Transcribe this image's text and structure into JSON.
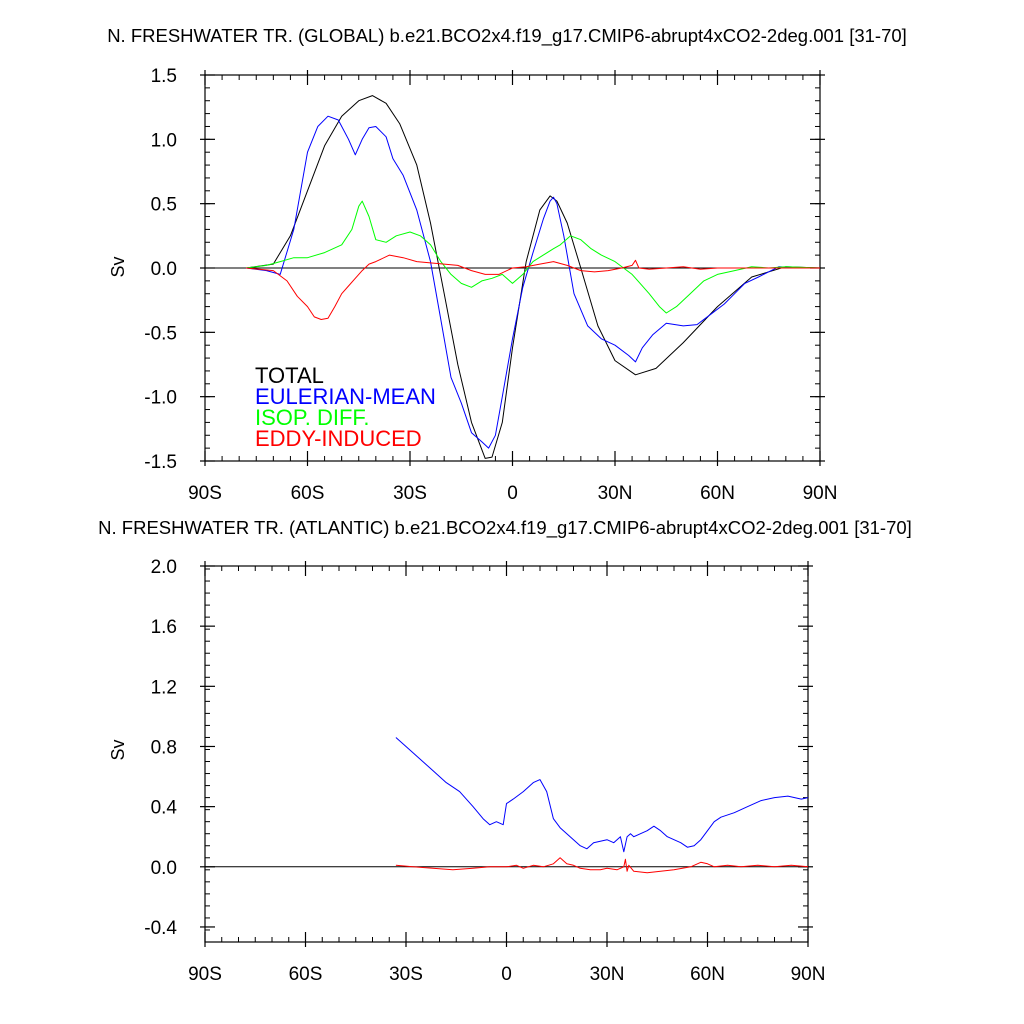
{
  "chart_data": [
    {
      "type": "line",
      "title": "N. FRESHWATER TR. (GLOBAL) b.e21.BCO2x4.f19_g17.CMIP6-abrupt4xCO2-2deg.001 [31-70]",
      "xlabel": "",
      "ylabel": "Sv",
      "xlim": [
        -90,
        90
      ],
      "ylim": [
        -1.5,
        1.5
      ],
      "xticks": [
        -90,
        -60,
        -30,
        0,
        30,
        60,
        90
      ],
      "xtick_labels": [
        "90S",
        "60S",
        "30S",
        "0",
        "30N",
        "60N",
        "90N"
      ],
      "yticks": [
        -1.5,
        -1.0,
        -0.5,
        0.0,
        0.5,
        1.0,
        1.5
      ],
      "ytick_labels": [
        "-1.5",
        "-1.0",
        "-0.5",
        "0.0",
        "0.5",
        "1.0",
        "1.5"
      ],
      "legend": [
        "TOTAL",
        "EULERIAN-MEAN",
        "ISOP. DIFF.",
        "EDDY-INDUCED"
      ],
      "legend_position": "bottom-left",
      "series": [
        {
          "name": "TOTAL",
          "color": "#000000",
          "x": [
            -78,
            -70,
            -65,
            -60,
            -55,
            -50,
            -45,
            -41,
            -37,
            -33,
            -28,
            -24,
            -20,
            -16,
            -12,
            -8,
            -6,
            -3,
            0,
            4,
            8,
            11,
            13,
            16,
            20,
            25,
            30,
            36,
            42,
            50,
            60,
            70,
            80,
            90
          ],
          "y": [
            0,
            0.03,
            0.25,
            0.6,
            0.95,
            1.18,
            1.3,
            1.34,
            1.28,
            1.12,
            0.8,
            0.35,
            -0.2,
            -0.75,
            -1.2,
            -1.48,
            -1.47,
            -1.2,
            -0.62,
            0.05,
            0.45,
            0.56,
            0.52,
            0.35,
            0.0,
            -0.45,
            -0.72,
            -0.83,
            -0.78,
            -0.58,
            -0.3,
            -0.07,
            0.01,
            0.0
          ]
        },
        {
          "name": "EULERIAN-MEAN",
          "color": "#0000ff",
          "x": [
            -78,
            -72,
            -68,
            -64,
            -60,
            -57,
            -54,
            -51,
            -48,
            -46,
            -44,
            -42,
            -40,
            -37,
            -35,
            -32,
            -28,
            -24,
            -21,
            -18,
            -15,
            -12,
            -9,
            -7,
            -5,
            -3,
            0,
            3,
            6,
            9,
            11,
            12,
            13,
            15,
            18,
            22,
            26,
            30,
            34,
            36,
            38,
            41,
            45,
            50,
            54,
            58,
            62,
            65,
            68,
            72,
            78,
            84,
            90
          ],
          "y": [
            0,
            -0.02,
            -0.05,
            0.3,
            0.9,
            1.1,
            1.18,
            1.15,
            1.0,
            0.88,
            1.0,
            1.09,
            1.1,
            1.02,
            0.85,
            0.72,
            0.45,
            0.05,
            -0.4,
            -0.85,
            -1.05,
            -1.28,
            -1.35,
            -1.4,
            -1.3,
            -1.0,
            -0.55,
            -0.15,
            0.12,
            0.38,
            0.52,
            0.55,
            0.5,
            0.25,
            -0.2,
            -0.45,
            -0.55,
            -0.6,
            -0.68,
            -0.73,
            -0.62,
            -0.52,
            -0.43,
            -0.45,
            -0.44,
            -0.36,
            -0.28,
            -0.2,
            -0.12,
            -0.07,
            0.01,
            0.0,
            0.0
          ]
        },
        {
          "name": "ISOP. DIFF.",
          "color": "#00ff00",
          "x": [
            -78,
            -72,
            -68,
            -64,
            -60,
            -55,
            -50,
            -47,
            -45,
            -44,
            -42,
            -40,
            -37,
            -34,
            -30,
            -27,
            -24,
            -21,
            -18,
            -15,
            -12,
            -9,
            -6,
            -3,
            0,
            3,
            6,
            9,
            12,
            14,
            17,
            20,
            23,
            26,
            30,
            35,
            40,
            43,
            45,
            48,
            52,
            56,
            60,
            65,
            70,
            75,
            80,
            90
          ],
          "y": [
            0,
            0.02,
            0.05,
            0.08,
            0.08,
            0.12,
            0.18,
            0.3,
            0.48,
            0.52,
            0.4,
            0.22,
            0.2,
            0.25,
            0.28,
            0.25,
            0.18,
            0.05,
            -0.05,
            -0.12,
            -0.15,
            -0.1,
            -0.08,
            -0.05,
            -0.12,
            -0.05,
            0.05,
            0.1,
            0.15,
            0.18,
            0.25,
            0.22,
            0.15,
            0.1,
            0.05,
            -0.05,
            -0.2,
            -0.3,
            -0.35,
            -0.3,
            -0.2,
            -0.1,
            -0.05,
            -0.02,
            0.01,
            0.0,
            0.01,
            0.0
          ]
        },
        {
          "name": "EDDY-INDUCED",
          "color": "#ff0000",
          "x": [
            -78,
            -70,
            -66,
            -63,
            -60,
            -58,
            -56,
            -54,
            -52,
            -50,
            -48,
            -46,
            -44,
            -42,
            -40,
            -36,
            -32,
            -28,
            -24,
            -20,
            -16,
            -12,
            -8,
            -4,
            0,
            4,
            8,
            12,
            16,
            20,
            24,
            28,
            32,
            35,
            36,
            37,
            40,
            45,
            50,
            55,
            60,
            70,
            80,
            90
          ],
          "y": [
            0,
            -0.02,
            -0.1,
            -0.22,
            -0.3,
            -0.38,
            -0.4,
            -0.39,
            -0.3,
            -0.2,
            -0.14,
            -0.08,
            -0.02,
            0.03,
            0.05,
            0.1,
            0.08,
            0.05,
            0.04,
            0.03,
            0.02,
            -0.02,
            -0.05,
            -0.05,
            0.0,
            0.01,
            0.03,
            0.05,
            0.02,
            -0.02,
            -0.03,
            -0.02,
            0.0,
            0.02,
            0.06,
            0.0,
            -0.01,
            0.0,
            0.01,
            -0.01,
            0.0,
            0.0,
            0.0,
            0.0
          ]
        }
      ]
    },
    {
      "type": "line",
      "title": "N. FRESHWATER TR. (ATLANTIC) b.e21.BCO2x4.f19_g17.CMIP6-abrupt4xCO2-2deg.001 [31-70]",
      "xlabel": "",
      "ylabel": "Sv",
      "xlim": [
        -90,
        90
      ],
      "ylim": [
        -0.5,
        2.0
      ],
      "xticks": [
        -90,
        -60,
        -30,
        0,
        30,
        60,
        90
      ],
      "xtick_labels": [
        "90S",
        "60S",
        "30S",
        "0",
        "30N",
        "60N",
        "90N"
      ],
      "yticks": [
        -0.4,
        0.0,
        0.4,
        0.8,
        1.2,
        1.6,
        2.0
      ],
      "ytick_labels": [
        "-0.4",
        "0.0",
        "0.4",
        "0.8",
        "1.2",
        "1.6",
        "2.0"
      ],
      "series": [
        {
          "name": "EULERIAN-MEAN",
          "color": "#0000ff",
          "x": [
            -33,
            -30,
            -26,
            -22,
            -18,
            -14,
            -10,
            -7,
            -5,
            -3,
            -1,
            0,
            2,
            5,
            8,
            10,
            12,
            14,
            16,
            18,
            20,
            22,
            24,
            26,
            28,
            30,
            32,
            34,
            35,
            36,
            37,
            38,
            40,
            42,
            44,
            46,
            48,
            50,
            52,
            54,
            56,
            58,
            60,
            62,
            64,
            68,
            72,
            76,
            80,
            84,
            88,
            90
          ],
          "y": [
            0.86,
            0.8,
            0.72,
            0.64,
            0.56,
            0.5,
            0.4,
            0.32,
            0.28,
            0.3,
            0.28,
            0.42,
            0.45,
            0.5,
            0.56,
            0.58,
            0.5,
            0.32,
            0.26,
            0.22,
            0.18,
            0.14,
            0.12,
            0.16,
            0.17,
            0.18,
            0.16,
            0.2,
            0.1,
            0.2,
            0.22,
            0.2,
            0.22,
            0.24,
            0.27,
            0.24,
            0.2,
            0.18,
            0.16,
            0.13,
            0.14,
            0.18,
            0.24,
            0.3,
            0.33,
            0.36,
            0.4,
            0.44,
            0.46,
            0.47,
            0.45,
            0.46
          ]
        },
        {
          "name": "EDDY-INDUCED",
          "color": "#ff0000",
          "x": [
            -33,
            -28,
            -22,
            -16,
            -10,
            -5,
            0,
            3,
            5,
            8,
            11,
            14,
            16,
            18,
            20,
            22,
            25,
            28,
            30,
            33,
            35,
            35.5,
            36,
            36.5,
            38,
            42,
            46,
            50,
            55,
            58,
            60,
            62,
            66,
            70,
            75,
            80,
            85,
            90
          ],
          "y": [
            0.01,
            0.0,
            -0.01,
            -0.02,
            -0.01,
            0.0,
            0.0,
            0.01,
            -0.01,
            0.01,
            0.0,
            0.02,
            0.06,
            0.02,
            0.01,
            -0.01,
            -0.02,
            -0.02,
            -0.01,
            -0.02,
            0.0,
            0.05,
            -0.03,
            0.01,
            -0.03,
            -0.04,
            -0.03,
            -0.02,
            0.0,
            0.03,
            0.02,
            0.0,
            0.01,
            0.0,
            0.01,
            0.0,
            0.01,
            0.0
          ]
        }
      ]
    }
  ]
}
